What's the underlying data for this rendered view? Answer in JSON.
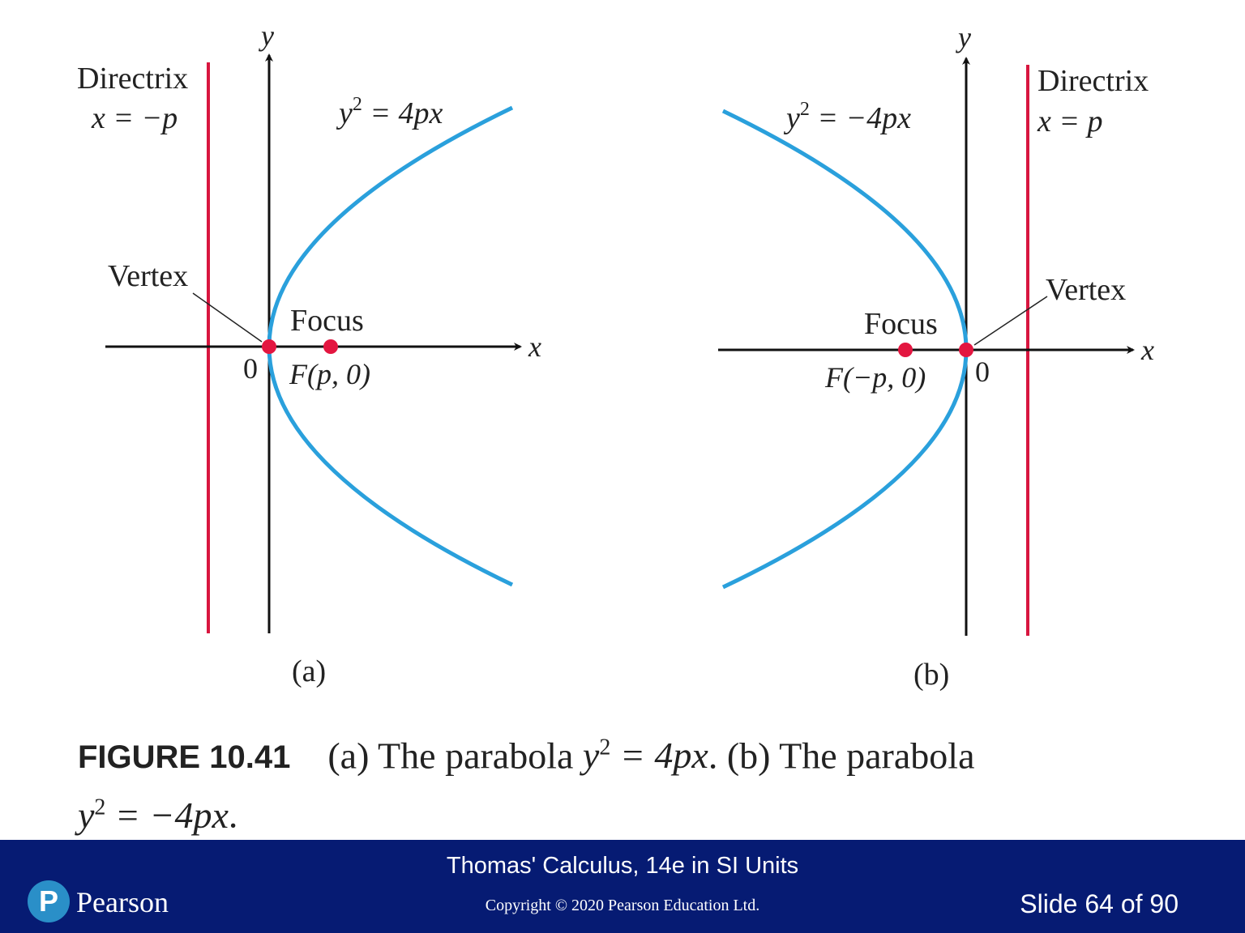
{
  "colors": {
    "parabola": "#2aa0dc",
    "directrix": "#d8163f",
    "point": "#e31640",
    "axis": "#111111",
    "footer": "#061b73",
    "logo": "#2a8fc8"
  },
  "panel_a": {
    "y_label": "y",
    "x_label": "x",
    "directrix_word": "Directrix",
    "directrix_eq": "x = −p",
    "equation_y": "y",
    "equation_exp": "2",
    "equation_rest": " = 4px",
    "vertex_label": "Vertex",
    "origin_label": "0",
    "focus_label": "Focus",
    "focus_point_label": "F(p, 0)",
    "panel_label": "(a)"
  },
  "panel_b": {
    "y_label": "y",
    "x_label": "x",
    "directrix_word": "Directrix",
    "directrix_eq": "x = p",
    "equation_y": "y",
    "equation_exp": "2",
    "equation_rest": " = −4px",
    "vertex_label": "Vertex",
    "origin_label": "0",
    "focus_label": "Focus",
    "focus_point_label": "F(−p, 0)",
    "panel_label": "(b)"
  },
  "caption": {
    "figure_label": "FIGURE 10.41",
    "part1": "(a) The parabola ",
    "eq1_y": "y",
    "eq1_exp": "2",
    "eq1_rest": " = 4px",
    "part2": ". (b) The parabola",
    "eq2_y": "y",
    "eq2_exp": "2",
    "eq2_rest": " = −4px",
    "part3": "."
  },
  "footer": {
    "book_title": "Thomas' Calculus, 14e in SI Units",
    "copyright": "Copyright © 2020 Pearson Education Ltd.",
    "slide_number": "Slide 64 of 90",
    "logo_mark": "P",
    "logo_text": "Pearson"
  }
}
